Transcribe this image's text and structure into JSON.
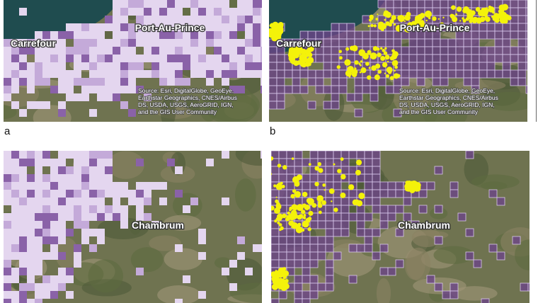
{
  "panels": [
    {
      "letter": "a",
      "places": [
        "Port-Au-Prince",
        "Carrefour"
      ],
      "attribution": [
        "Source: Esri, DigitalGlobe, GeoEye,",
        "Earthstar Geographics, CNES/Airbus",
        "DS, USDA, USGS, AeroGRID, IGN,",
        "and the GIS User Community"
      ]
    },
    {
      "letter": "b",
      "places": [
        "Port-Au-Prince",
        "Carrefour"
      ],
      "attribution": [
        "Source: Esri, DigitalGlobe, GeoEye,",
        "Earthstar Geographics, CNES/Airbus",
        "DS, USDA, USGS, AeroGRID, IGN,",
        "and the GIS User Community"
      ]
    },
    {
      "places": [
        "Chambrum"
      ]
    },
    {
      "places": [
        "Chambrum"
      ]
    }
  ]
}
